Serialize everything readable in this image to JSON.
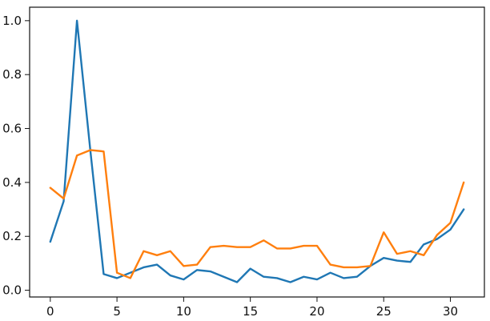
{
  "chart_data": {
    "type": "line",
    "x": [
      0,
      1,
      2,
      3,
      4,
      5,
      6,
      7,
      8,
      9,
      10,
      11,
      12,
      13,
      14,
      15,
      16,
      17,
      18,
      19,
      20,
      21,
      22,
      23,
      24,
      25,
      26,
      27,
      28,
      29,
      30,
      31
    ],
    "xlim": [
      -1.55,
      32.55
    ],
    "ylim": [
      -0.025,
      1.05
    ],
    "xticks": [
      0,
      5,
      10,
      15,
      20,
      25,
      30
    ],
    "yticks": [
      0.0,
      0.2,
      0.4,
      0.6,
      0.8,
      1.0
    ],
    "xtick_labels": [
      "0",
      "5",
      "10",
      "15",
      "20",
      "25",
      "30"
    ],
    "ytick_labels": [
      "0.0",
      "0.2",
      "0.4",
      "0.6",
      "0.8",
      "1.0"
    ],
    "grid": false,
    "series": [
      {
        "color": "#1f77b4",
        "values": [
          0.18,
          0.33,
          1.0,
          0.52,
          0.06,
          0.045,
          0.065,
          0.085,
          0.095,
          0.055,
          0.04,
          0.075,
          0.07,
          0.05,
          0.03,
          0.08,
          0.05,
          0.045,
          0.03,
          0.05,
          0.04,
          0.065,
          0.045,
          0.05,
          0.09,
          0.12,
          0.11,
          0.105,
          0.17,
          0.19,
          0.225,
          0.3
        ]
      },
      {
        "color": "#ff7f0e",
        "values": [
          0.38,
          0.34,
          0.5,
          0.52,
          0.515,
          0.065,
          0.045,
          0.145,
          0.13,
          0.145,
          0.09,
          0.095,
          0.16,
          0.165,
          0.16,
          0.16,
          0.185,
          0.155,
          0.155,
          0.165,
          0.165,
          0.095,
          0.085,
          0.085,
          0.09,
          0.215,
          0.135,
          0.145,
          0.13,
          0.205,
          0.25,
          0.4
        ]
      }
    ]
  }
}
